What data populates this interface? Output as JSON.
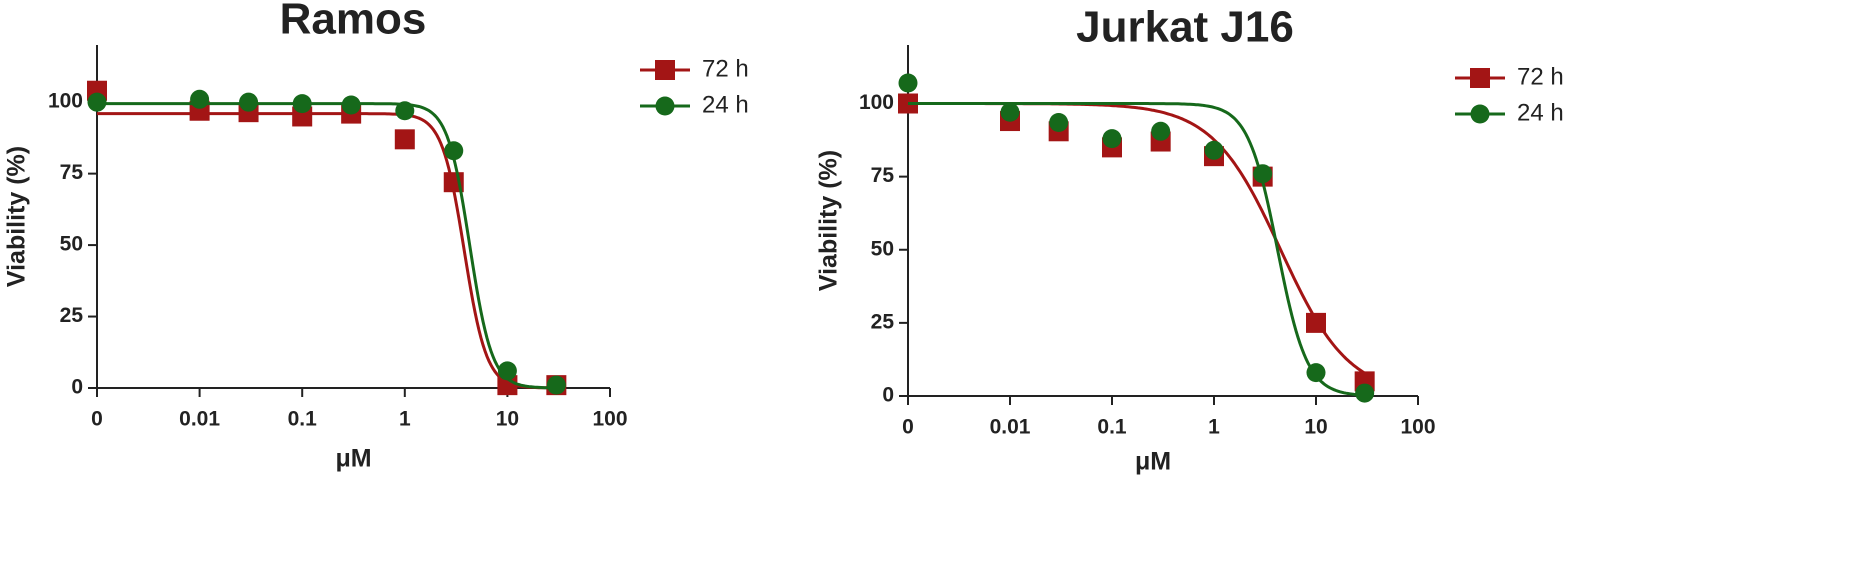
{
  "chart_data": [
    {
      "type": "scatter",
      "title": "Ramos",
      "xlabel": "μM",
      "ylabel": "Viability (%)",
      "xscale": "log",
      "x": [
        0,
        0.01,
        0.03,
        0.1,
        0.3,
        1,
        3,
        10,
        30
      ],
      "xlim": [
        0,
        100
      ],
      "xticks": [
        0,
        0.01,
        0.1,
        1,
        10,
        100
      ],
      "ylim": [
        0,
        120
      ],
      "yticks": [
        0,
        25,
        50,
        75,
        100
      ],
      "legend": "right",
      "series": [
        {
          "name": "72 h",
          "color": "#a31515",
          "marker": "square",
          "values": [
            104,
            97,
            96.5,
            95,
            96,
            87,
            72,
            1,
            1
          ],
          "fit": {
            "top": 96,
            "bottom": 0,
            "ec50": 3.8,
            "hill": 4
          }
        },
        {
          "name": "24 h",
          "color": "#16691b",
          "marker": "circle",
          "values": [
            100,
            101,
            100,
            99.5,
            99,
            97,
            83,
            6,
            1
          ],
          "fit": {
            "top": 99.5,
            "bottom": 0,
            "ec50": 4.3,
            "hill": 4
          }
        }
      ]
    },
    {
      "type": "scatter",
      "title": "Jurkat J16",
      "xlabel": "μM",
      "ylabel": "Viability (%)",
      "xscale": "log",
      "x": [
        0,
        0.01,
        0.03,
        0.1,
        0.3,
        1,
        3,
        10,
        30
      ],
      "xlim": [
        0,
        100
      ],
      "xticks": [
        0,
        0.01,
        0.1,
        1,
        10,
        100
      ],
      "ylim": [
        0,
        120
      ],
      "yticks": [
        0,
        25,
        50,
        75,
        100
      ],
      "legend": "right",
      "series": [
        {
          "name": "72 h",
          "color": "#a31515",
          "marker": "square",
          "values": [
            100,
            94,
            90.5,
            85,
            87,
            82,
            75,
            25,
            5
          ],
          "fit": {
            "top": 100,
            "bottom": 0,
            "ec50": 4.5,
            "hill": 1.3
          }
        },
        {
          "name": "24 h",
          "color": "#16691b",
          "marker": "circle",
          "values": [
            107,
            97,
            93.5,
            88,
            90.5,
            84,
            76,
            8,
            1
          ],
          "fit": {
            "top": 100,
            "bottom": 0,
            "ec50": 4.2,
            "hill": 3
          }
        }
      ]
    }
  ]
}
